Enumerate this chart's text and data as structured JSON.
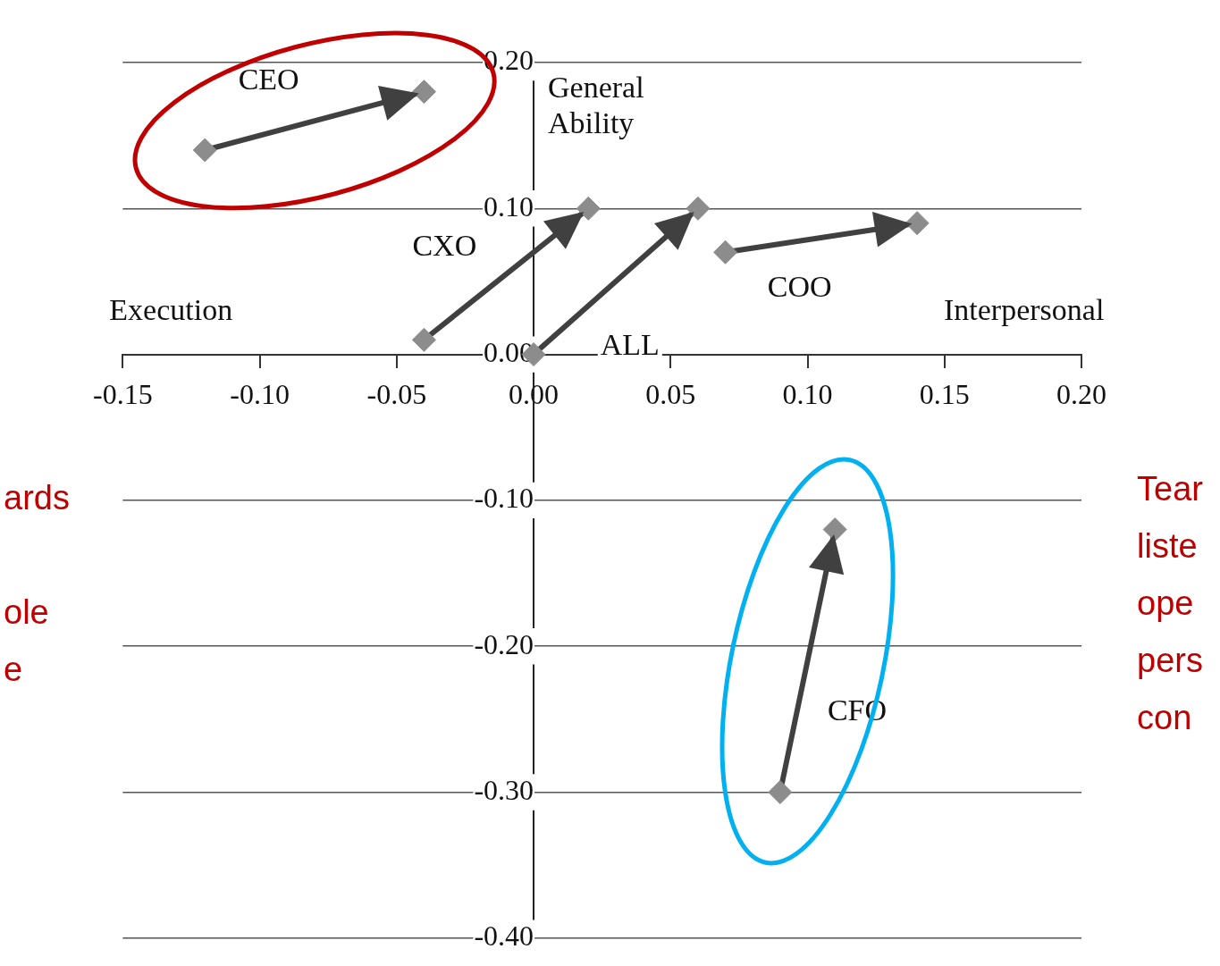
{
  "chart_data": {
    "type": "line",
    "xlim": [
      -0.15,
      0.2
    ],
    "xticks": [
      {
        "value": -0.15,
        "label": "-0.15"
      },
      {
        "value": -0.1,
        "label": "-0.10"
      },
      {
        "value": -0.05,
        "label": "-0.05"
      },
      {
        "value": 0,
        "label": "0.00"
      },
      {
        "value": 0.05,
        "label": "0.05"
      },
      {
        "value": 0.1,
        "label": "0.10"
      },
      {
        "value": 0.15,
        "label": "0.15"
      },
      {
        "value": 0.2,
        "label": "0.20"
      }
    ],
    "ylim": [
      -0.4,
      0.2
    ],
    "yticks": [
      {
        "value": -0.4,
        "label": "-0.40"
      },
      {
        "value": -0.3,
        "label": "-0.30"
      },
      {
        "value": -0.2,
        "label": "-0.20"
      },
      {
        "value": -0.1,
        "label": "-0.10"
      },
      {
        "value": 0,
        "label": "0.00"
      },
      {
        "value": 0.1,
        "label": "0.10"
      },
      {
        "value": 0.2,
        "label": "0.20"
      }
    ],
    "grid": "y",
    "marker": "diamond",
    "series": [
      {
        "name": "CEO",
        "color": "#404040",
        "x": [
          -0.12,
          -0.04
        ],
        "values": [
          0.14,
          0.18
        ]
      },
      {
        "name": "CXO",
        "color": "#404040",
        "x": [
          -0.04,
          0.02
        ],
        "values": [
          0.01,
          0.1
        ]
      },
      {
        "name": "ALL",
        "color": "#404040",
        "x": [
          0,
          0.06
        ],
        "values": [
          0,
          0.1
        ]
      },
      {
        "name": "COO",
        "color": "#404040",
        "x": [
          0.07,
          0.14
        ],
        "values": [
          0.07,
          0.09
        ]
      },
      {
        "name": "CFO",
        "color": "#404040",
        "x": [
          0.09,
          0.11
        ],
        "values": [
          -0.3,
          -0.12
        ]
      }
    ],
    "annotations": [
      "Execution",
      "Interpersonal",
      "General\nAbility",
      "ards\n\nole\ne",
      "Tear\nliste\nope\npers\ncon"
    ]
  }
}
